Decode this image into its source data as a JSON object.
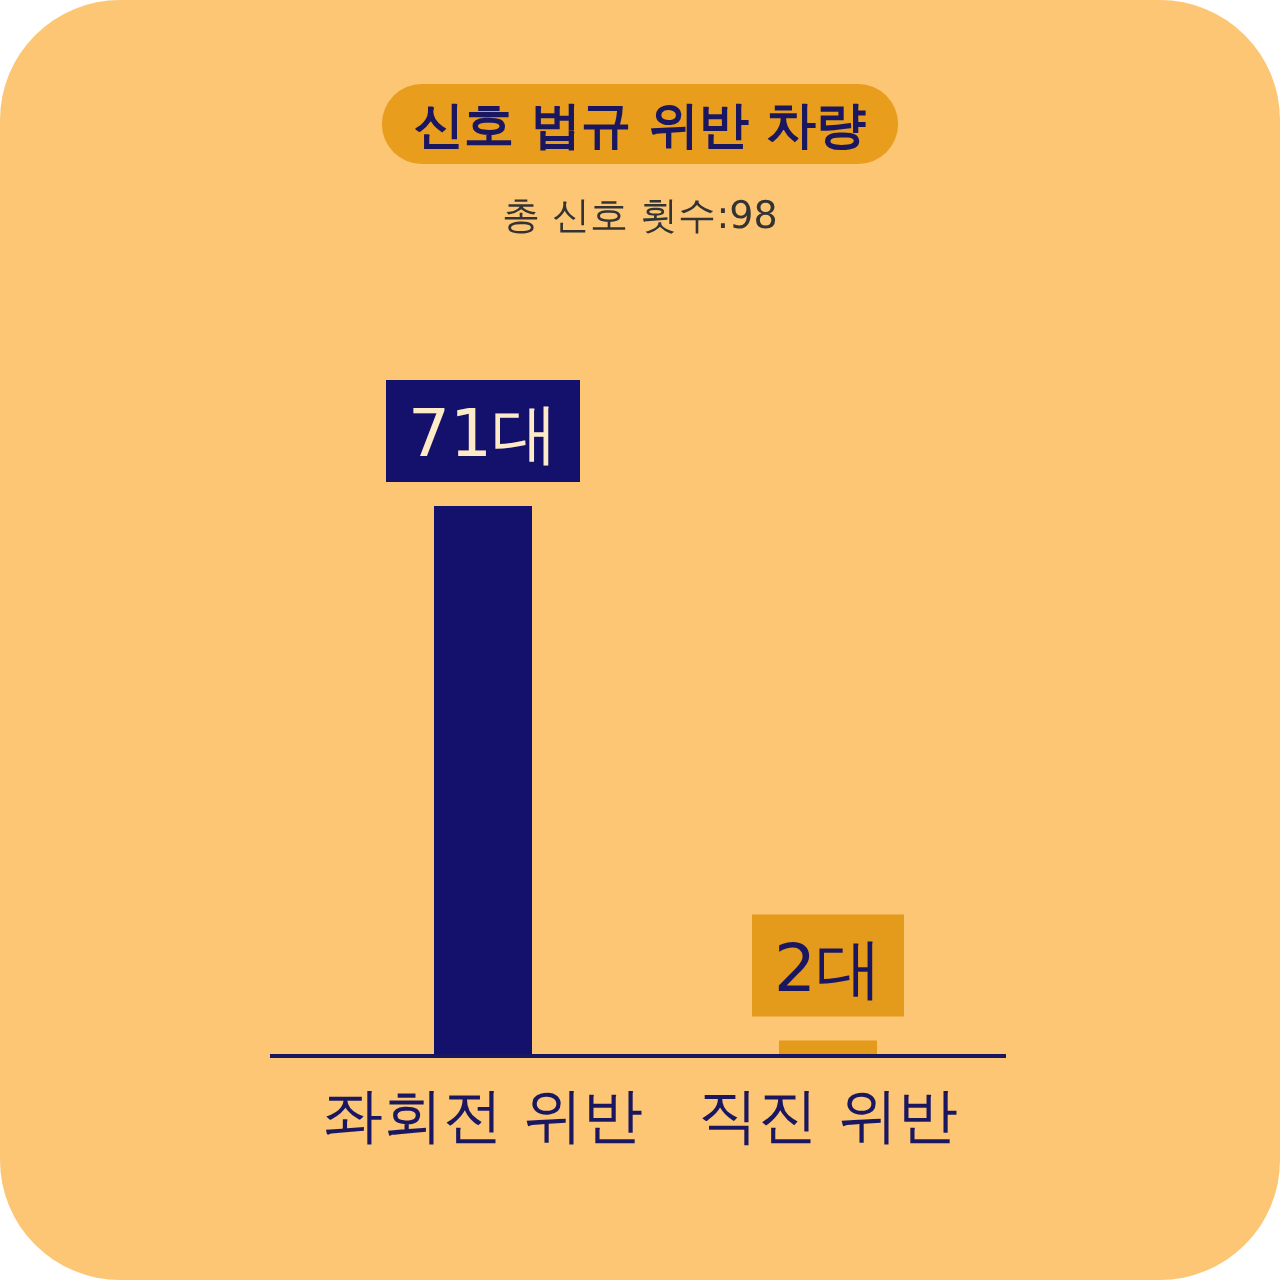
{
  "chart_data": {
    "type": "bar",
    "title": "신호 법규 위반 차량",
    "subtitle": "총 신호 횟수:98",
    "categories": [
      "좌회전 위반",
      "직진 위반"
    ],
    "values": [
      71,
      2
    ],
    "colors": [
      "#13116b",
      "#e49a1a"
    ],
    "value_labels": [
      "71대",
      "2대"
    ]
  }
}
